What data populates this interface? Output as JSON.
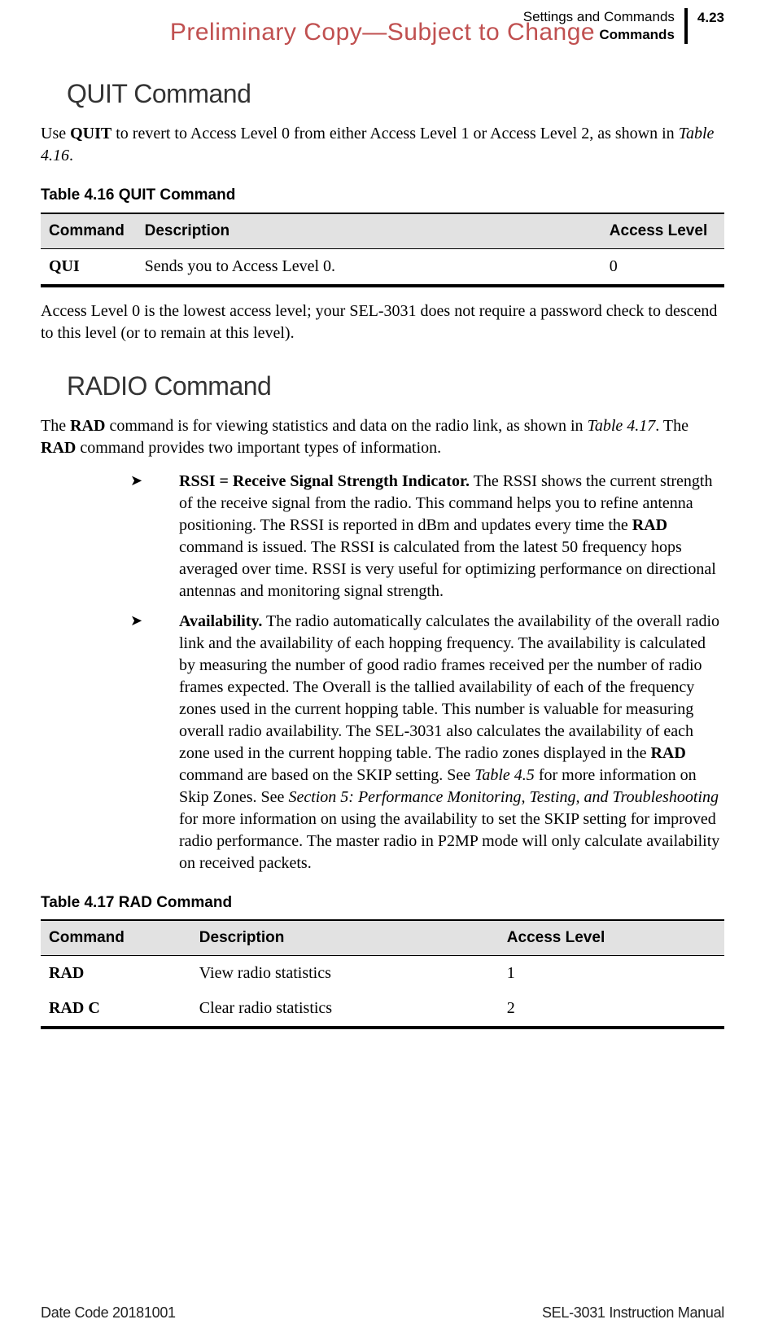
{
  "watermark": "Preliminary Copy—Subject to Change",
  "header": {
    "section": "Settings and Commands",
    "subsection": "Commands",
    "page_number": "4.23"
  },
  "sections": {
    "quit": {
      "title": "QUIT Command",
      "intro_pre": "Use ",
      "intro_bold": "QUIT",
      "intro_mid": " to revert to Access Level 0 from either Access Level 1 or Access Level 2, as shown in ",
      "intro_ref": "Table 4.16",
      "intro_post": ".",
      "after_table": "Access Level 0 is the lowest access level; your SEL-3031 does not require a password check to descend to this level (or to remain at this level)."
    },
    "radio": {
      "title": "RADIO Command",
      "intro_pre": "The ",
      "intro_b1": "RAD",
      "intro_mid1": " command is for viewing statistics and data on the radio link, as shown in ",
      "intro_ref": "Table 4.17",
      "intro_mid2": ". The ",
      "intro_b2": "RAD",
      "intro_post": " command provides two important types of information.",
      "bullets": [
        {
          "lead": "RSSI = Receive Signal Strength Indicator.",
          "t1": " The RSSI shows the current strength of the receive signal from the radio. This command helps you to refine antenna positioning. The RSSI is reported in dBm and updates every time the ",
          "b1": "RAD",
          "t2": " command is issued. The RSSI is calculated from the latest 50 frequency hops averaged over time. RSSI is very useful for optimizing performance on directional antennas and monitoring signal strength."
        },
        {
          "lead": "Availability.",
          "t1": " The radio automatically calculates the availability of the overall radio link and the availability of each hopping frequency. The availability is calculated by measuring the number of good radio frames received per the number of radio frames expected. The Overall is the tallied availability of each of the frequency zones used in the current hopping table. This number is valuable for measuring overall radio availability. The SEL-3031 also calculates the availability of each zone used in the current hopping table. The radio zones displayed in the ",
          "b1": "RAD",
          "t2": " command are based on the SKIP setting. See ",
          "ref1": "Table 4.5",
          "t3": " for more information on Skip Zones. See ",
          "ref2": "Section 5: Performance Monitoring, Testing, and Troubleshooting",
          "t4": " for more information on using the availability to set the SKIP setting for improved radio performance. The master radio in P2MP mode will only calculate availability on received packets."
        }
      ]
    }
  },
  "tables": {
    "t416": {
      "caption": "Table 4.16    QUIT Command",
      "headers": [
        "Command",
        "Description",
        "Access Level"
      ],
      "col_widths": [
        "14%",
        "68%",
        "18%"
      ],
      "rows": [
        {
          "cmd": "QUI",
          "desc": "Sends you to Access Level 0.",
          "level": "0"
        }
      ]
    },
    "t417": {
      "caption": "Table 4.17    RAD Command",
      "headers": [
        "Command",
        "Description",
        "Access Level"
      ],
      "col_widths": [
        "22%",
        "45%",
        "33%"
      ],
      "rows": [
        {
          "cmd": "RAD",
          "desc": "View radio statistics",
          "level": "1"
        },
        {
          "cmd": "RAD C",
          "desc": "Clear radio statistics",
          "level": "2"
        }
      ]
    }
  },
  "footer": {
    "left": "Date Code 20181001",
    "right": "SEL-3031 Instruction Manual"
  },
  "bullet_glyph": "➤"
}
